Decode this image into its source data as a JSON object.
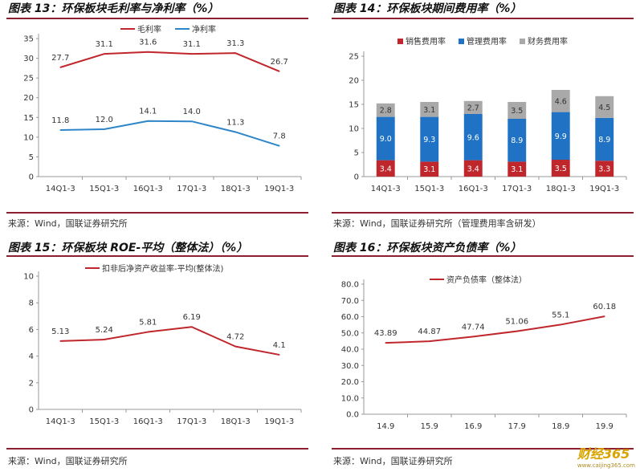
{
  "chart_data": [
    {
      "id": "c13",
      "type": "line",
      "title": "图表 13：环保板块毛利率与净利率（%）",
      "source": "来源：Wind，国联证券研究所",
      "categories": [
        "14Q1-3",
        "15Q1-3",
        "16Q1-3",
        "17Q1-3",
        "18Q1-3",
        "19Q1-3"
      ],
      "series": [
        {
          "name": "毛利率",
          "color": "#c0272d",
          "values": [
            27.7,
            31.1,
            31.6,
            31.1,
            31.3,
            26.7
          ],
          "labels": [
            "27.7",
            "31.1",
            "31.6",
            "31.1",
            "31.3",
            "26.7"
          ]
        },
        {
          "name": "净利率",
          "color": "#2e86c8",
          "values": [
            11.8,
            12.0,
            14.1,
            14.0,
            11.3,
            7.8
          ],
          "labels": [
            "11.8",
            "12.0",
            "14.1",
            "14.0",
            "11.3",
            "7.8"
          ]
        }
      ],
      "ylim": [
        0,
        35
      ],
      "yticks": [
        "0",
        "5",
        "10",
        "15",
        "20",
        "25",
        "30",
        "35"
      ],
      "legend": "top"
    },
    {
      "id": "c14",
      "type": "bar",
      "stacked": true,
      "title": "图表 14：环保板块期间费用率（%）",
      "source": "来源：Wind，国联证券研究所（管理费用率含研发）",
      "categories": [
        "14Q1-3",
        "15Q1-3",
        "16Q1-3",
        "17Q1-3",
        "18Q1-3",
        "19Q1-3"
      ],
      "series": [
        {
          "name": "销售费用率",
          "color": "#c0272d",
          "values": [
            3.4,
            3.1,
            3.4,
            3.1,
            3.5,
            3.3
          ],
          "labels": [
            "3.4",
            "3.1",
            "3.4",
            "3.1",
            "3.5",
            "3.3"
          ]
        },
        {
          "name": "管理费用率",
          "color": "#1f72c4",
          "values": [
            9.0,
            9.3,
            9.6,
            8.9,
            9.9,
            8.9
          ],
          "labels": [
            "9.0",
            "9.3",
            "9.6",
            "8.9",
            "9.9",
            "8.9"
          ]
        },
        {
          "name": "财务费用率",
          "color": "#a9a9a9",
          "values": [
            2.8,
            3.1,
            2.7,
            3.5,
            4.6,
            4.5
          ],
          "labels": [
            "2.8",
            "3.1",
            "2.7",
            "3.5",
            "4.6",
            "4.5"
          ]
        }
      ],
      "ylim": [
        0,
        25
      ],
      "yticks": [
        "0",
        "5",
        "10",
        "15",
        "20",
        "25"
      ],
      "legend": "top"
    },
    {
      "id": "c15",
      "type": "line",
      "title": "图表 15：环保板块 ROE-平均（整体法）（%）",
      "source": "来源：Wind，国联证券研究所",
      "categories": [
        "14Q1-3",
        "15Q1-3",
        "16Q1-3",
        "17Q1-3",
        "18Q1-3",
        "19Q1-3"
      ],
      "series": [
        {
          "name": "扣非后净资产收益率-平均(整体法)",
          "color": "#c0272d",
          "values": [
            5.13,
            5.24,
            5.81,
            6.19,
            4.72,
            4.1
          ],
          "labels": [
            "5.13",
            "5.24",
            "5.81",
            "6.19",
            "4.72",
            "4.1"
          ]
        }
      ],
      "ylim": [
        0,
        10
      ],
      "yticks": [
        "0",
        "2",
        "4",
        "6",
        "8",
        "10"
      ],
      "legend": "top"
    },
    {
      "id": "c16",
      "type": "line",
      "title": "图表 16：环保板块资产负债率（%）",
      "source": "来源：Wind，国联证券研究所",
      "categories": [
        "14.9",
        "15.9",
        "16.9",
        "17.9",
        "18.9",
        "19.9"
      ],
      "series": [
        {
          "name": "资产负债率（整体法）",
          "color": "#c0272d",
          "values": [
            43.89,
            44.87,
            47.74,
            51.06,
            55.1,
            60.18
          ],
          "labels": [
            "43.89",
            "44.87",
            "47.74",
            "51.06",
            "55.1",
            "60.18"
          ]
        }
      ],
      "ylim": [
        0,
        80
      ],
      "yticks": [
        "0.0",
        "10.0",
        "20.0",
        "30.0",
        "40.0",
        "50.0",
        "60.0",
        "70.0",
        "80.0"
      ],
      "legend": "top"
    }
  ],
  "watermark": {
    "brand": "财经365",
    "url": "www.caijing365.com"
  }
}
